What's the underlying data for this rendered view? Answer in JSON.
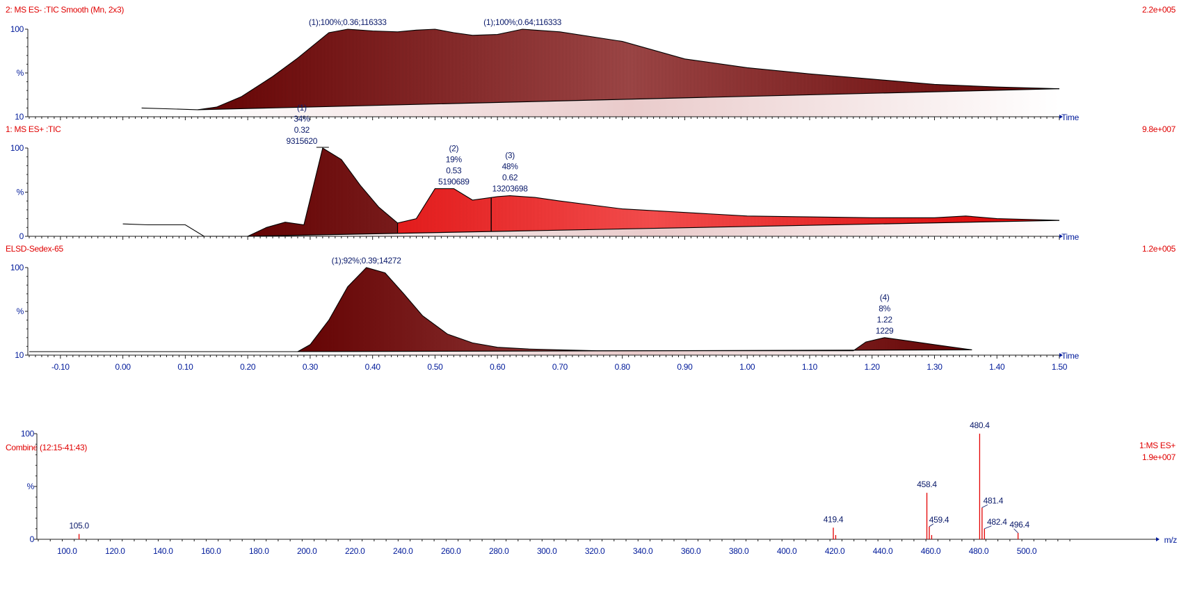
{
  "chart_data": [
    {
      "type": "area",
      "trace_label": "2: MS ES- :TIC Smooth (Mn, 2x3)",
      "intensity_max": "2.2e+005",
      "x_unit": "Time",
      "y_ticks": [
        "100",
        "%",
        "10"
      ],
      "x_range": [
        -0.15,
        1.5
      ],
      "y_range": [
        0,
        100
      ],
      "color": "#7a0a0a",
      "profile": [
        [
          0.03,
          10
        ],
        [
          0.12,
          8
        ],
        [
          0.15,
          11
        ],
        [
          0.19,
          23
        ],
        [
          0.24,
          46
        ],
        [
          0.28,
          67
        ],
        [
          0.33,
          96
        ],
        [
          0.36,
          100
        ],
        [
          0.4,
          98
        ],
        [
          0.44,
          97
        ],
        [
          0.47,
          99
        ],
        [
          0.5,
          100
        ],
        [
          0.53,
          96
        ],
        [
          0.56,
          93
        ],
        [
          0.6,
          94
        ],
        [
          0.64,
          100
        ],
        [
          0.7,
          97
        ],
        [
          0.8,
          86
        ],
        [
          0.9,
          66
        ],
        [
          1.0,
          56
        ],
        [
          1.1,
          49
        ],
        [
          1.2,
          43
        ],
        [
          1.3,
          37
        ],
        [
          1.4,
          34
        ],
        [
          1.5,
          32
        ]
      ],
      "peaks": [
        {
          "label": "(1);100%;0.36;116333",
          "rt": 0.36,
          "height": 100
        },
        {
          "label": "(1);100%;0.64;116333",
          "rt": 0.64,
          "height": 100
        }
      ]
    },
    {
      "type": "area",
      "trace_label": "1: MS ES+ :TIC",
      "intensity_max": "9.8e+007",
      "x_unit": "Time",
      "y_ticks": [
        "100",
        "%",
        "0"
      ],
      "x_range": [
        -0.15,
        1.5
      ],
      "y_range": [
        0,
        100
      ],
      "color": "#ee1111",
      "profile": [
        [
          0.0,
          14
        ],
        [
          0.04,
          13
        ],
        [
          0.1,
          13
        ],
        [
          0.13,
          0
        ],
        [
          0.18,
          0
        ],
        [
          0.2,
          0
        ],
        [
          0.23,
          10
        ],
        [
          0.26,
          16
        ],
        [
          0.29,
          13
        ],
        [
          0.32,
          100
        ],
        [
          0.35,
          87
        ],
        [
          0.38,
          58
        ],
        [
          0.41,
          33
        ],
        [
          0.44,
          15
        ],
        [
          0.47,
          20
        ],
        [
          0.5,
          54
        ],
        [
          0.53,
          54
        ],
        [
          0.56,
          41
        ],
        [
          0.6,
          45
        ],
        [
          0.62,
          46
        ],
        [
          0.66,
          44
        ],
        [
          0.7,
          40
        ],
        [
          0.8,
          31
        ],
        [
          0.9,
          27
        ],
        [
          1.0,
          23
        ],
        [
          1.1,
          22
        ],
        [
          1.2,
          21
        ],
        [
          1.3,
          21
        ],
        [
          1.35,
          23
        ],
        [
          1.4,
          20
        ],
        [
          1.5,
          18
        ]
      ],
      "peaks": [
        {
          "lines": [
            "(1)",
            "34%",
            "0.32",
            "9315620"
          ],
          "rt": 0.32,
          "height": 100
        },
        {
          "lines": [
            "(2)",
            "19%",
            "0.53",
            "5190689"
          ],
          "rt": 0.53,
          "height": 54
        },
        {
          "lines": [
            "(3)",
            "48%",
            "0.62",
            "13203698"
          ],
          "rt": 0.62,
          "height": 46
        }
      ]
    },
    {
      "type": "area",
      "trace_label": "ELSD-Sedex-65",
      "intensity_max": "1.2e+005",
      "x_unit": "Time",
      "y_ticks": [
        "100",
        "%",
        "10"
      ],
      "x_range": [
        -0.15,
        1.5
      ],
      "y_range": [
        0,
        100
      ],
      "x_ticks": [
        "-0.10",
        "0.00",
        "0.10",
        "0.20",
        "0.30",
        "0.40",
        "0.50",
        "0.60",
        "0.70",
        "0.80",
        "0.90",
        "1.00",
        "1.10",
        "1.20",
        "1.30",
        "1.40",
        "1.50"
      ],
      "color": "#7a0a0a",
      "profile": [
        [
          -0.15,
          4
        ],
        [
          0.28,
          4
        ],
        [
          0.3,
          12
        ],
        [
          0.33,
          40
        ],
        [
          0.36,
          78
        ],
        [
          0.39,
          100
        ],
        [
          0.42,
          94
        ],
        [
          0.45,
          70
        ],
        [
          0.48,
          45
        ],
        [
          0.52,
          24
        ],
        [
          0.56,
          14
        ],
        [
          0.6,
          9
        ],
        [
          0.65,
          7
        ],
        [
          0.7,
          6
        ],
        [
          0.76,
          5
        ],
        [
          0.8,
          5
        ],
        [
          0.9,
          5
        ],
        [
          1.0,
          5
        ],
        [
          1.1,
          5
        ],
        [
          1.17,
          5
        ],
        [
          1.19,
          15
        ],
        [
          1.22,
          20
        ],
        [
          1.26,
          16
        ],
        [
          1.3,
          12
        ],
        [
          1.36,
          6
        ]
      ],
      "peaks": [
        {
          "label": "(1);92%;0.39;14272",
          "rt": 0.39,
          "height": 100
        },
        {
          "lines": [
            "(4)",
            "8%",
            "1.22",
            "1229"
          ],
          "rt": 1.22,
          "height": 20
        }
      ]
    },
    {
      "type": "bar",
      "trace_label": "Combine (12:15-41:43)",
      "mode_label": "1:MS ES+",
      "intensity_max": "1.9e+007",
      "x_unit": "m/z",
      "y_ticks": [
        "100",
        "%",
        "0"
      ],
      "x_range": [
        88,
        520
      ],
      "y_range": [
        0,
        100
      ],
      "x_ticks": [
        "100.0",
        "120.0",
        "140.0",
        "160.0",
        "180.0",
        "200.0",
        "220.0",
        "240.0",
        "260.0",
        "280.0",
        "300.0",
        "320.0",
        "340.0",
        "360.0",
        "380.0",
        "400.0",
        "420.0",
        "440.0",
        "460.0",
        "480.0",
        "500.0"
      ],
      "peaks": [
        {
          "mz": 105.0,
          "intensity": 5,
          "label": "105.0"
        },
        {
          "mz": 419.4,
          "intensity": 11,
          "label": "419.4"
        },
        {
          "mz": 420.4,
          "intensity": 4
        },
        {
          "mz": 458.4,
          "intensity": 44,
          "label": "458.4"
        },
        {
          "mz": 459.4,
          "intensity": 12,
          "label": "459.4"
        },
        {
          "mz": 460.4,
          "intensity": 4
        },
        {
          "mz": 480.4,
          "intensity": 100,
          "label": "480.4"
        },
        {
          "mz": 481.4,
          "intensity": 30,
          "label": "481.4"
        },
        {
          "mz": 482.4,
          "intensity": 10,
          "label": "482.4"
        },
        {
          "mz": 496.4,
          "intensity": 6,
          "label": "496.4"
        }
      ]
    }
  ]
}
